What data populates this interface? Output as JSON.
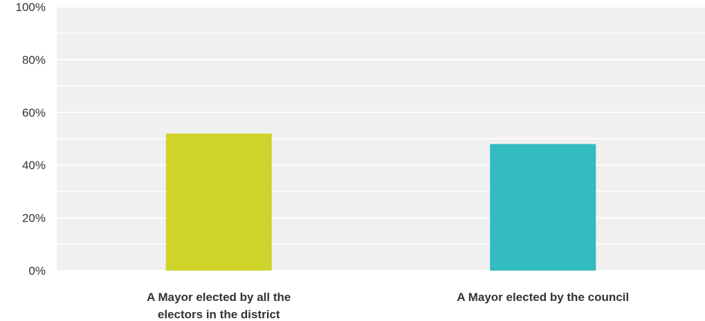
{
  "chart_data": {
    "type": "bar",
    "categories": [
      [
        "A Mayor elected by all the",
        "electors in the district"
      ],
      [
        "A Mayor elected by the council"
      ]
    ],
    "values": [
      52,
      48
    ],
    "colors": [
      "#cfd42a",
      "#33bcc0"
    ],
    "ylim": [
      0,
      100
    ],
    "yticks": [
      "0%",
      "20%",
      "40%",
      "60%",
      "80%",
      "100%"
    ],
    "plot_background": "#f0f0f0",
    "grid": true,
    "title": "",
    "xlabel": "",
    "ylabel": ""
  }
}
